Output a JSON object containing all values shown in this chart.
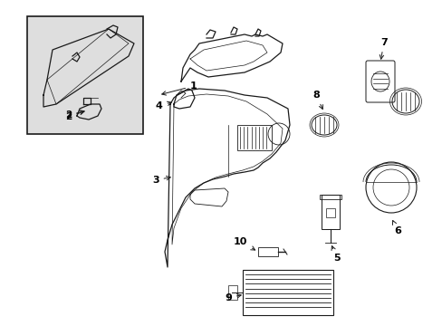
{
  "bg_color": "#ffffff",
  "line_color": "#1a1a1a",
  "label_color": "#000000",
  "inset_bg": "#dedede",
  "fig_width": 4.89,
  "fig_height": 3.6,
  "dpi": 100
}
